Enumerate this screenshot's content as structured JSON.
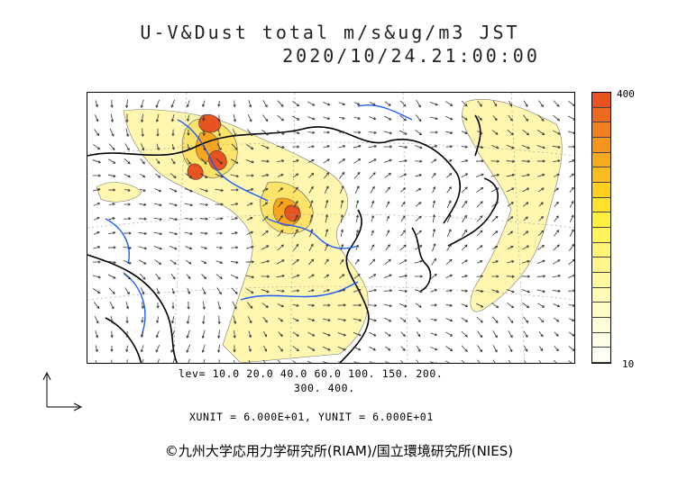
{
  "title": {
    "line1": "U-V&Dust total m/s&ug/m3 JST",
    "line2": "2020/10/24.21:00:00"
  },
  "colorbar": {
    "max_label": "400",
    "min_label": "10",
    "colors": [
      "#e8531f",
      "#ee6a1f",
      "#f2801f",
      "#f5951e",
      "#f8aa1e",
      "#fbbd1e",
      "#fdd020",
      "#fee12f",
      "#fff040",
      "#fff45c",
      "#fff675",
      "#fff78c",
      "#fff9a2",
      "#fffab6",
      "#fffbc8",
      "#fffcd8",
      "#fffde6",
      "#fffef2"
    ]
  },
  "levels": {
    "line1": "lev=  10.0  20.0  40.0  60.0 100. 150. 200.",
    "line2": "300. 400."
  },
  "units": {
    "text": "XUNIT = 6.000E+01, YUNIT = 6.000E+01"
  },
  "credit": "©九州大学応用力学研究所(RIAM)/国立環境研究所(NIES)",
  "colors": {
    "dust_light": "#fff7b0",
    "dust_mid": "#fde36a",
    "dust_high": "#f8a51e",
    "dust_peak": "#e8531f",
    "river": "#1a5cff",
    "coast": "#000000",
    "vector": "#333333"
  }
}
